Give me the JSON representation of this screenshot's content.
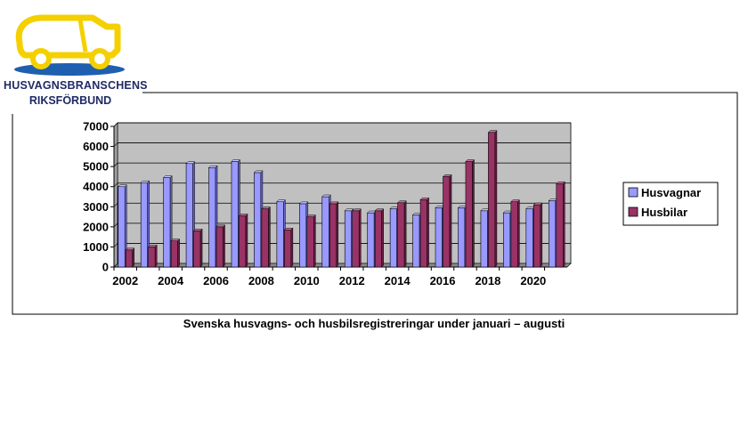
{
  "logo": {
    "line1": "HUSVAGNSBRANSCHENS",
    "line2": "RIKSFÖRBUND"
  },
  "caption": "Svenska husvagns- och husbilsregistreringar under januari – augusti",
  "colors": {
    "plot_bg": "#c0c0c0",
    "husvagnar": "#9999ff",
    "husbilar": "#993366",
    "logo_yellow": "#f5d000",
    "logo_blue": "#1f5fb0",
    "logo_text": "#1f2a66"
  },
  "chart_data": {
    "type": "bar",
    "categories": [
      "2002",
      "2003",
      "2004",
      "2005",
      "2006",
      "2007",
      "2008",
      "2009",
      "2010",
      "2011",
      "2012",
      "2013",
      "2014",
      "2015",
      "2016",
      "2017",
      "2018",
      "2019",
      "2020",
      "2021"
    ],
    "x_tick_labels": [
      "2002",
      "2004",
      "2006",
      "2008",
      "2010",
      "2012",
      "2014",
      "2016",
      "2018",
      "2020"
    ],
    "series": [
      {
        "name": "Husvagnar",
        "color": "#9999ff",
        "values": [
          4000,
          4200,
          4450,
          5150,
          4950,
          5250,
          4700,
          3250,
          3150,
          3500,
          2800,
          2700,
          2900,
          2600,
          2950,
          2950,
          2800,
          2700,
          2900,
          3300
        ]
      },
      {
        "name": "Husbilar",
        "color": "#993366",
        "values": [
          850,
          1000,
          1300,
          1800,
          2000,
          2550,
          2900,
          1850,
          2500,
          3150,
          2800,
          2800,
          3200,
          3350,
          4500,
          5250,
          6700,
          3250,
          3100,
          4150
        ]
      }
    ],
    "ylim": [
      0,
      7000
    ],
    "yticks": [
      0,
      1000,
      2000,
      3000,
      4000,
      5000,
      6000,
      7000
    ],
    "grid": true,
    "legend_position": "right"
  }
}
